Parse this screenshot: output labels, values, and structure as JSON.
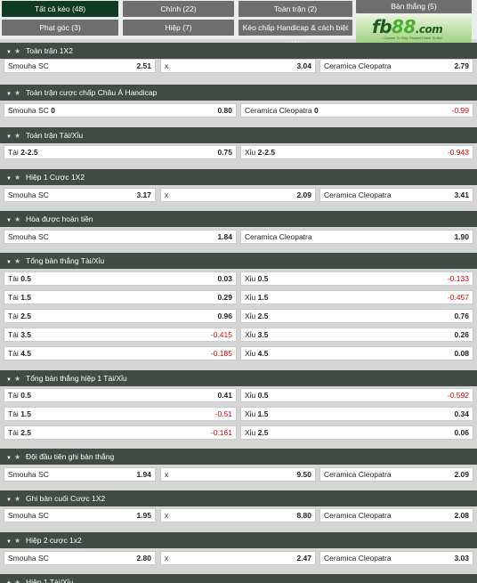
{
  "tabs": [
    {
      "label": "Tất cả kèo (48)",
      "active": true
    },
    {
      "label": "Chính (22)",
      "active": false
    },
    {
      "label": "Toàn trận (2)",
      "active": false
    },
    {
      "label": "Bàn thắng (5)",
      "active": false
    },
    {
      "label": "Phạt góc (3)",
      "active": false
    },
    {
      "label": "Hiệp (7)",
      "active": false
    },
    {
      "label": "Kèo chấp Handicap & cách biệt (1)",
      "active": false
    }
  ],
  "ad": {
    "brand": "fb",
    "brand_num": "88",
    "brand_domain": ".com",
    "slogan": "...Games To Play Trusted Place To Bet"
  },
  "sections": [
    {
      "title": "Toàn trận 1X2",
      "rows": [
        [
          {
            "label": "Smouha SC",
            "odd": "2.51"
          },
          {
            "label": "x",
            "odd": "3.04"
          },
          {
            "label": "Ceramica Cleopatra",
            "odd": "2.79"
          }
        ]
      ]
    },
    {
      "title": "Toàn trận cược chấp Châu Á Handicap",
      "rows": [
        [
          {
            "label": "Smouha SC",
            "line": "0",
            "odd": "0.80"
          },
          {
            "label": "Ceramica Cleopatra",
            "line": "0",
            "odd": "-0.99"
          }
        ]
      ]
    },
    {
      "title": "Toàn trận Tài/Xỉu",
      "rows": [
        [
          {
            "label": "Tài",
            "line": "2-2.5",
            "odd": "0.75"
          },
          {
            "label": "Xỉu",
            "line": "2-2.5",
            "odd": "-0.943"
          }
        ]
      ]
    },
    {
      "title": "Hiệp 1 Cược 1X2",
      "rows": [
        [
          {
            "label": "Smouha SC",
            "odd": "3.17"
          },
          {
            "label": "x",
            "odd": "2.09"
          },
          {
            "label": "Ceramica Cleopatra",
            "odd": "3.41"
          }
        ]
      ]
    },
    {
      "title": "Hòa được hoàn tiền",
      "rows": [
        [
          {
            "label": "Smouha SC",
            "odd": "1.84"
          },
          {
            "label": "Ceramica Cleopatra",
            "odd": "1.90"
          }
        ]
      ]
    },
    {
      "title": "Tổng bàn thắng Tài/Xỉu",
      "rows": [
        [
          {
            "label": "Tài",
            "line": "0.5",
            "odd": "0.03"
          },
          {
            "label": "Xỉu",
            "line": "0.5",
            "odd": "-0.133"
          }
        ],
        [
          {
            "label": "Tài",
            "line": "1.5",
            "odd": "0.29"
          },
          {
            "label": "Xỉu",
            "line": "1.5",
            "odd": "-0.457"
          }
        ],
        [
          {
            "label": "Tài",
            "line": "2.5",
            "odd": "0.96"
          },
          {
            "label": "Xỉu",
            "line": "2.5",
            "odd": "0.76"
          }
        ],
        [
          {
            "label": "Tài",
            "line": "3.5",
            "odd": "-0.415"
          },
          {
            "label": "Xỉu",
            "line": "3.5",
            "odd": "0.26"
          }
        ],
        [
          {
            "label": "Tài",
            "line": "4.5",
            "odd": "-0.185"
          },
          {
            "label": "Xỉu",
            "line": "4.5",
            "odd": "0.08"
          }
        ]
      ]
    },
    {
      "title": "Tổng bàn thắng hiệp 1 Tài/Xỉu",
      "rows": [
        [
          {
            "label": "Tài",
            "line": "0.5",
            "odd": "0.41"
          },
          {
            "label": "Xỉu",
            "line": "0.5",
            "odd": "-0.592"
          }
        ],
        [
          {
            "label": "Tài",
            "line": "1.5",
            "odd": "-0.51"
          },
          {
            "label": "Xỉu",
            "line": "1.5",
            "odd": "0.34"
          }
        ],
        [
          {
            "label": "Tài",
            "line": "2.5",
            "odd": "-0.161"
          },
          {
            "label": "Xỉu",
            "line": "2.5",
            "odd": "0.06"
          }
        ]
      ]
    },
    {
      "title": "Đội đầu tiên ghi bàn thắng",
      "rows": [
        [
          {
            "label": "Smouha SC",
            "odd": "1.94"
          },
          {
            "label": "x",
            "odd": "9.50"
          },
          {
            "label": "Ceramica Cleopatra",
            "odd": "2.09"
          }
        ]
      ]
    },
    {
      "title": "Ghi bàn cuối Cược 1X2",
      "rows": [
        [
          {
            "label": "Smouha SC",
            "odd": "1.95"
          },
          {
            "label": "x",
            "odd": "8.80"
          },
          {
            "label": "Ceramica Cleopatra",
            "odd": "2.08"
          }
        ]
      ]
    },
    {
      "title": "Hiệp 2 cược 1x2",
      "rows": [
        [
          {
            "label": "Smouha SC",
            "odd": "2.80"
          },
          {
            "label": "x",
            "odd": "2.47"
          },
          {
            "label": "Ceramica Cleopatra",
            "odd": "3.03"
          }
        ]
      ]
    },
    {
      "title": "Hiệp 1 Tài/Xỉu",
      "rows": []
    }
  ],
  "icons": {
    "collapse": "caret-down-icon",
    "favorite": "star-icon"
  },
  "colors": {
    "active_tab": "#0f3a23",
    "tab": "#6e6e6e",
    "section_header": "#414c45",
    "negative_odd": "#d00000"
  }
}
